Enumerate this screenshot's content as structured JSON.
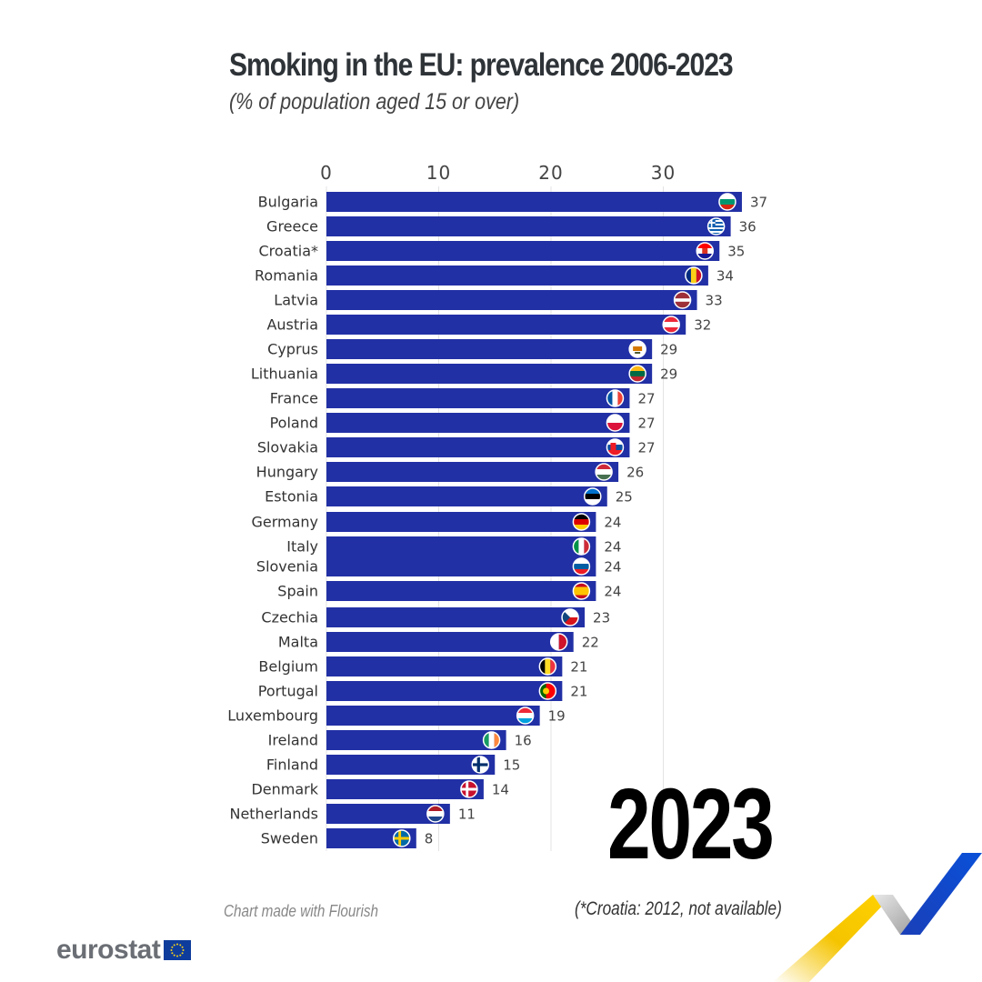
{
  "title": "Smoking in the EU: prevalence 2006-2023",
  "subtitle": "(% of population aged 15 or over)",
  "year": "2023",
  "footnote": "(*Croatia: 2012, not available)",
  "credit": "Chart made with Flourish",
  "logo_text": "eurostat",
  "colors": {
    "bar": "#2230a5",
    "grid": "#e3e3e3",
    "tick": "#444444"
  },
  "chart_data": {
    "type": "bar",
    "orientation": "horizontal",
    "xlim": [
      0,
      37
    ],
    "x_ticks": [
      0,
      10,
      20,
      30
    ],
    "x_tick_labels": [
      "0",
      "10",
      "20",
      "30"
    ],
    "grid": true,
    "categories": [
      "Bulgaria",
      "Greece",
      "Croatia*",
      "Romania",
      "Latvia",
      "Austria",
      "Cyprus",
      "Lithuania",
      "France",
      "Poland",
      "Slovakia",
      "Hungary",
      "Estonia",
      "Germany",
      "Italy",
      "Slovenia",
      "Spain",
      "Czechia",
      "Malta",
      "Belgium",
      "Portugal",
      "Luxembourg",
      "Ireland",
      "Finland",
      "Denmark",
      "Netherlands",
      "Sweden"
    ],
    "values": [
      37,
      36,
      35,
      34,
      33,
      32,
      29,
      29,
      27,
      27,
      27,
      26,
      25,
      24,
      24,
      24,
      24,
      23,
      22,
      21,
      21,
      19,
      16,
      15,
      14,
      11,
      8
    ],
    "flags": [
      "flag-bulgaria-icon",
      "flag-greece-icon",
      "flag-croatia-icon",
      "flag-romania-icon",
      "flag-latvia-icon",
      "flag-austria-icon",
      "flag-cyprus-icon",
      "flag-lithuania-icon",
      "flag-france-icon",
      "flag-poland-icon",
      "flag-slovakia-icon",
      "flag-hungary-icon",
      "flag-estonia-icon",
      "flag-germany-icon",
      "flag-italy-icon",
      "flag-slovenia-icon",
      "flag-spain-icon",
      "flag-czechia-icon",
      "flag-malta-icon",
      "flag-belgium-icon",
      "flag-portugal-icon",
      "flag-luxembourg-icon",
      "flag-ireland-icon",
      "flag-finland-icon",
      "flag-denmark-icon",
      "flag-netherlands-icon",
      "flag-sweden-icon"
    ]
  }
}
